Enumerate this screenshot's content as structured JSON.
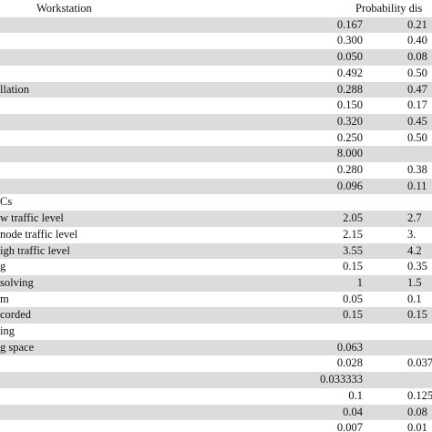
{
  "table": {
    "header": [
      "Workstation",
      "Probability dis"
    ],
    "rows": [
      [
        null,
        "0.167",
        "0.21"
      ],
      [
        null,
        "0.300",
        "0.40"
      ],
      [
        null,
        "0.050",
        "0.08"
      ],
      [
        null,
        "0.492",
        "0.50"
      ],
      [
        "llation",
        "0.288",
        "0.47"
      ],
      [
        null,
        "0.150",
        "0.17"
      ],
      [
        null,
        "0.320",
        "0.45"
      ],
      [
        null,
        "0.250",
        "0.50"
      ],
      [
        null,
        "8.000",
        null
      ],
      [
        null,
        "0.280",
        "0.38"
      ],
      [
        null,
        "0.096",
        "0.11"
      ],
      [
        "Cs",
        null,
        null
      ],
      [
        "w traffic level",
        "2.05",
        "2.7"
      ],
      [
        "node traffic level",
        "2.15",
        "3."
      ],
      [
        "igh traffic level",
        "3.55",
        "4.2"
      ],
      [
        "g",
        "0.15",
        "0.35"
      ],
      [
        " solving",
        "1",
        "1.5"
      ],
      [
        "m",
        "0.05",
        "0.1"
      ],
      [
        "corded",
        "0.15",
        "0.15"
      ],
      [
        "ing",
        null,
        null
      ],
      [
        "g space",
        "0.063",
        null
      ],
      [
        null,
        "0.028",
        "0.037"
      ],
      [
        null,
        "0.033333",
        null
      ],
      [
        null,
        "0.1",
        "0.125"
      ],
      [
        null,
        "0.04",
        "0.08"
      ],
      [
        null,
        "0.007",
        "0.01"
      ]
    ]
  }
}
